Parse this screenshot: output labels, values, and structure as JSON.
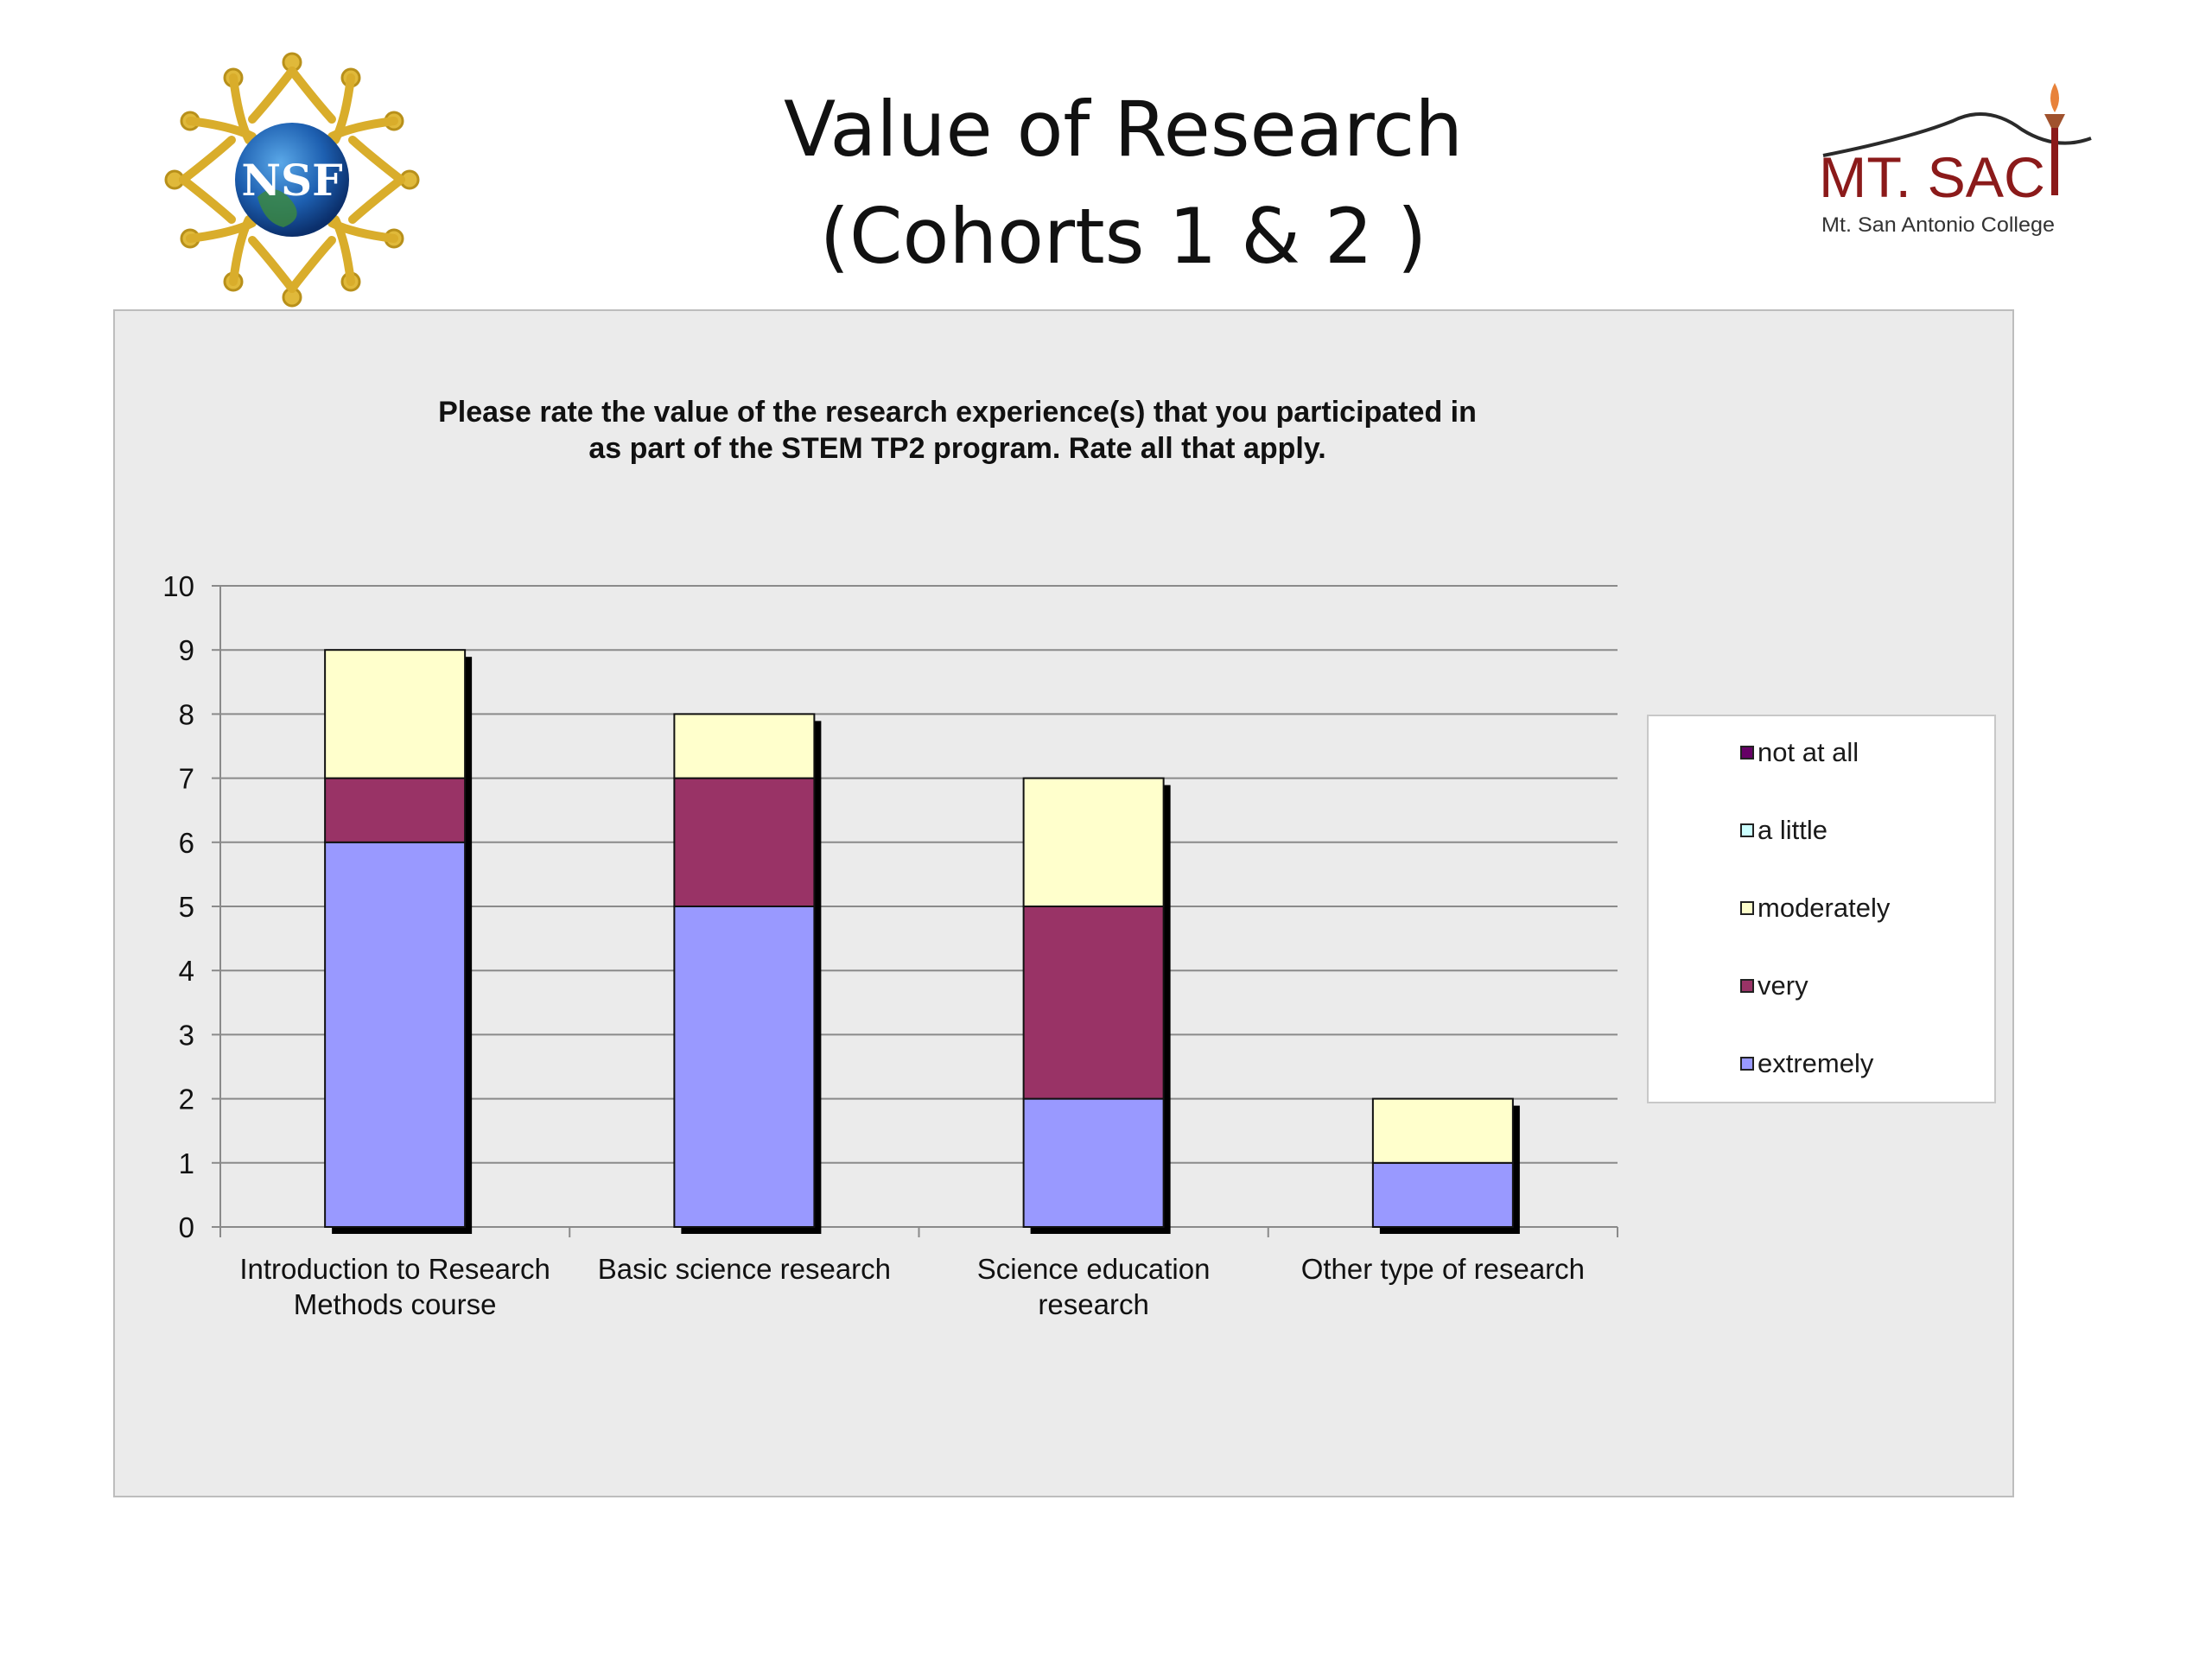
{
  "slide": {
    "title_line1": "Value of Research",
    "title_line2": "(Cohorts 1 & 2 )"
  },
  "logos": {
    "nsf_text": "NSF",
    "mtsac_text": "MT. SAC",
    "mtsac_subtext": "Mt. San Antonio College"
  },
  "chart_data": {
    "type": "bar",
    "stacked": true,
    "title_lines": [
      "Please rate the value of the research experience(s) that you participated in",
      "as part of the STEM TP2 program. Rate all that apply."
    ],
    "categories": [
      [
        "Introduction to Research",
        "Methods course"
      ],
      [
        "Basic science research"
      ],
      [
        "Science education",
        "research"
      ],
      [
        "Other type of research"
      ]
    ],
    "series": [
      {
        "name": "extremely",
        "values": [
          6,
          5,
          2,
          1
        ],
        "color": "#9999ff"
      },
      {
        "name": "very",
        "values": [
          1,
          2,
          3,
          0
        ],
        "color": "#993366"
      },
      {
        "name": "moderately",
        "values": [
          2,
          1,
          2,
          1
        ],
        "color": "#ffffcc"
      },
      {
        "name": "a little",
        "values": [
          0,
          0,
          0,
          0
        ],
        "color": "#ccffff"
      },
      {
        "name": "not at all",
        "values": [
          0,
          0,
          0,
          0
        ],
        "color": "#660066"
      }
    ],
    "ylim": [
      0,
      10
    ],
    "yticks": [
      0,
      1,
      2,
      3,
      4,
      5,
      6,
      7,
      8,
      9,
      10
    ],
    "grid": true,
    "legend_position": "right",
    "legend_order": [
      "not at all",
      "a little",
      "moderately",
      "very",
      "extremely"
    ]
  }
}
